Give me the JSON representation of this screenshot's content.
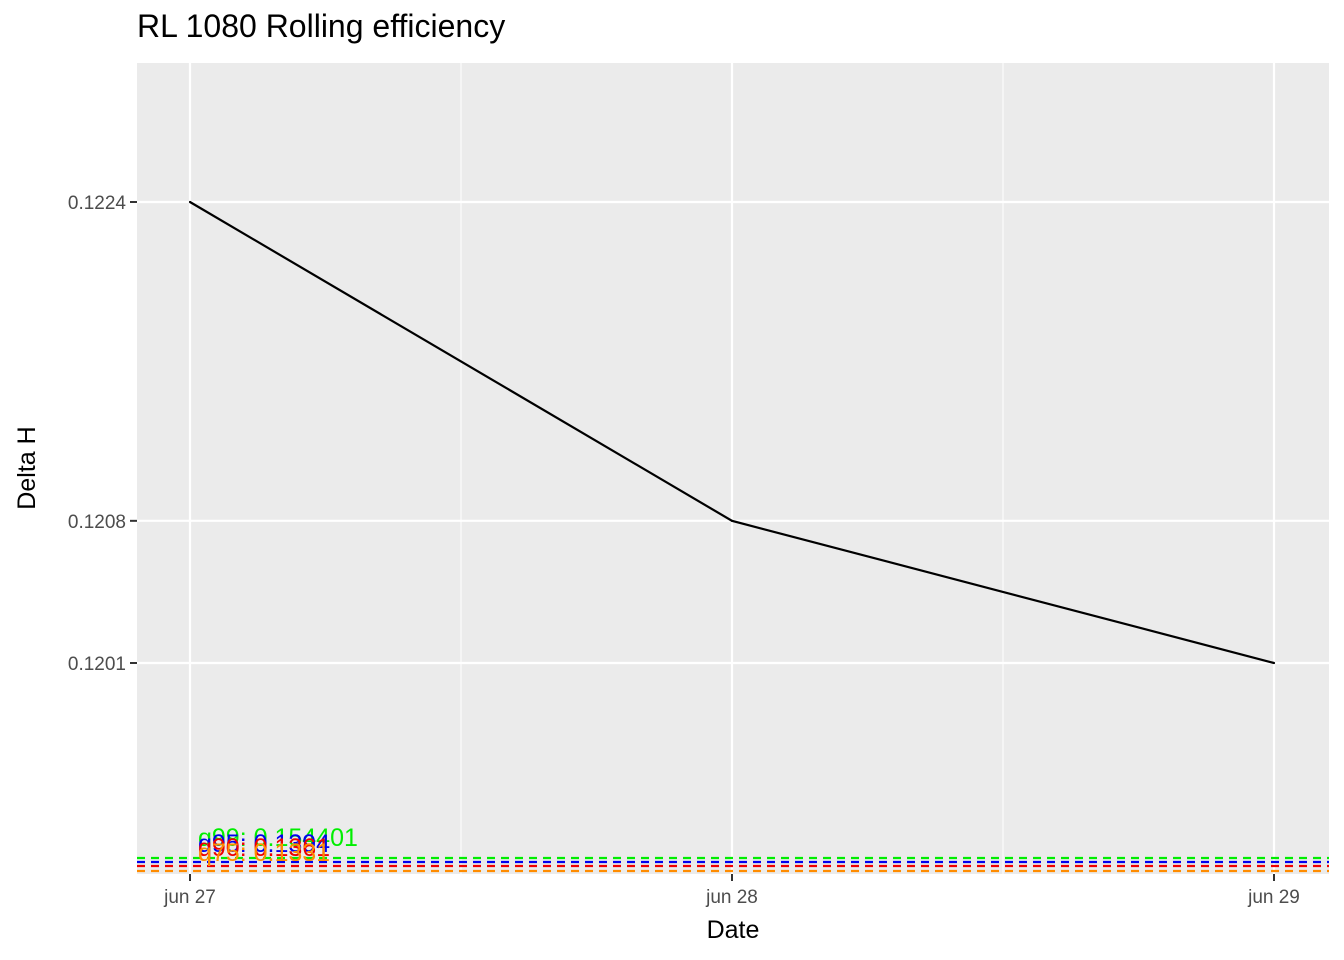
{
  "chart_data": {
    "type": "line",
    "title": "RL 1080 Rolling efficiency",
    "xlabel": "Date",
    "ylabel": "Delta H",
    "x_dates": [
      "jun 27",
      "jun 28",
      "jun 29"
    ],
    "x_ticks": [
      "jun 27",
      "jun 28",
      "jun 29"
    ],
    "series": [
      {
        "values": [
          0.1224,
          0.1208,
          0.1201
        ],
        "color": "#000000"
      }
    ],
    "y_ticks": [
      "0.1224",
      "0.1208",
      "0.1201"
    ],
    "y_scale": "reciprocal-like (ticks unevenly spaced by value)",
    "reference_lines": [
      {
        "label": "q99: 0.154401",
        "value": 0.154401,
        "color": "#00ee00",
        "style": "dashed"
      },
      {
        "label": "q95: 0.1394",
        "value": 0.1394,
        "color": "#0000ee",
        "style": "dashed"
      },
      {
        "label": "q90: 0.1361",
        "value": 0.1361,
        "color": "#ee0000",
        "style": "dashed"
      },
      {
        "label": "q75: 0.1331",
        "value": 0.1331,
        "color": "#ff8c00",
        "style": "dashed"
      }
    ],
    "background": "#ebebeb",
    "grid": true,
    "legend": "none"
  }
}
